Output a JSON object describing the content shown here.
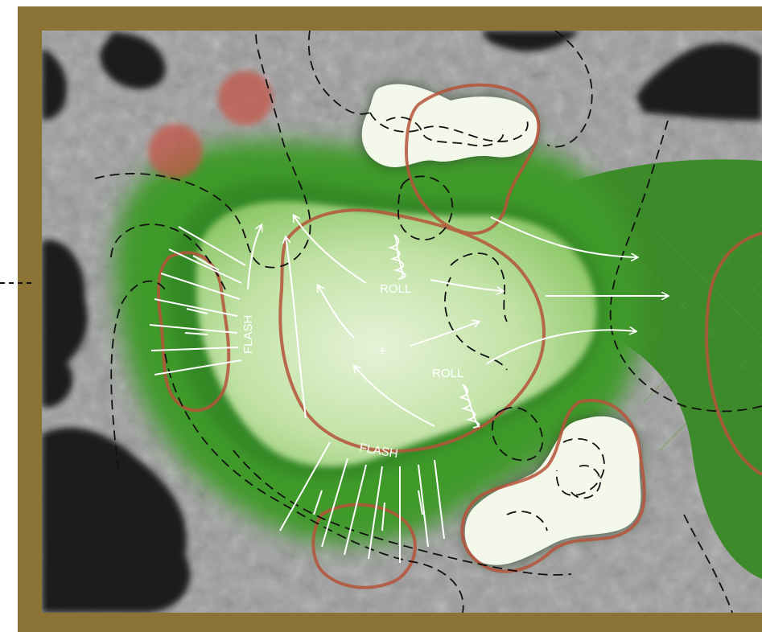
{
  "map": {
    "labels": {
      "roll_top": "ROLL",
      "roll_bottom": "ROLL",
      "flash_left": "FLASH",
      "flash_bottom": "FLASH",
      "pin_mark": "+"
    },
    "colors": {
      "frame": "#8b7335",
      "green_surface": "#c8e6b0",
      "fringe": "#3f9a2c",
      "contour": "#b5543a",
      "bunker_sand": "#f3f8ea",
      "trees": "#1e1e1e",
      "annotation": "#ffffff"
    },
    "features": [
      "putting-green",
      "sand-bunker-north",
      "sand-bunker-southeast",
      "fairway-east",
      "tree-line-west",
      "shrubs-northwest"
    ]
  }
}
